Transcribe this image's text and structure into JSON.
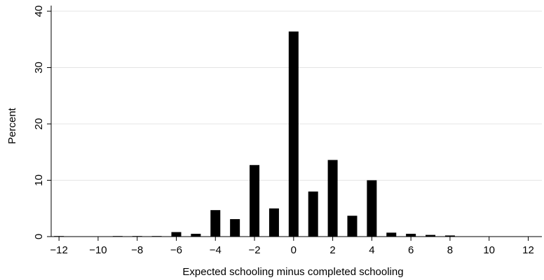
{
  "chart_data": {
    "type": "bar",
    "xlabel": "Expected schooling minus completed schooling",
    "ylabel": "Percent",
    "xlim": [
      -12.4,
      12.7
    ],
    "ylim": [
      0,
      41
    ],
    "xticks": [
      -12,
      -10,
      -8,
      -6,
      -4,
      -2,
      0,
      2,
      4,
      6,
      8,
      10,
      12
    ],
    "xtick_labels": [
      "−12",
      "−10",
      "−8",
      "−6",
      "−4",
      "−2",
      "0",
      "2",
      "4",
      "6",
      "8",
      "10",
      "12"
    ],
    "yticks": [
      0,
      10,
      20,
      30,
      40
    ],
    "ytick_labels": [
      "0",
      "10",
      "20",
      "30",
      "40"
    ],
    "grid": true,
    "bar_color": "#000000",
    "grid_color": "#e4e4e4",
    "series": [
      {
        "x": [
          -12,
          -9,
          -8,
          -7,
          -6,
          -5,
          -4,
          -3,
          -2,
          -1,
          0,
          1,
          2,
          3,
          4,
          5,
          6,
          7,
          8
        ],
        "values": [
          0.1,
          0.1,
          0.1,
          0.1,
          0.8,
          0.5,
          4.7,
          3.1,
          12.7,
          5.0,
          36.4,
          8.0,
          13.6,
          3.7,
          10.0,
          0.7,
          0.5,
          0.3,
          0.2
        ]
      }
    ]
  }
}
